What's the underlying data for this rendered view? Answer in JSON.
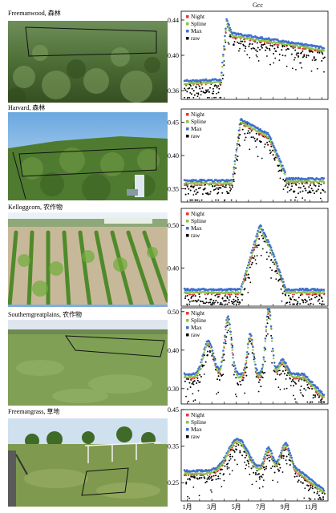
{
  "figure": {
    "ylabel": "Gcc",
    "months": [
      "1月",
      "3月",
      "5月",
      "7月",
      "9月",
      "11月"
    ],
    "legend": [
      "Night",
      "Spline",
      "Max",
      "raw"
    ],
    "colors": {
      "night": "#e53935",
      "spline": "#8bc34a",
      "max": "#3f6fd0",
      "raw": "#000000"
    }
  },
  "sites": [
    {
      "label": "Freemanwood, 森林",
      "ticks": [
        "0.44",
        "0.40",
        "0.36"
      ],
      "ylim": [
        0.35,
        0.45
      ]
    },
    {
      "label": "Harvard, 森林",
      "ticks": [
        "0.45",
        "0.40",
        "0.35"
      ],
      "ylim": [
        0.33,
        0.47
      ]
    },
    {
      "label": "Kelloggcorn, 农作物",
      "ticks": [
        "0.50",
        "0.40"
      ],
      "ylim": [
        0.31,
        0.54
      ]
    },
    {
      "label": "Southerngreatplains, 农作物",
      "ticks": [
        "0.50",
        "0.40",
        "0.30"
      ],
      "ylim": [
        0.26,
        0.51
      ]
    },
    {
      "label": "Freemangrass, 草地",
      "ticks": [
        "0.45",
        "0.35",
        "0.25"
      ],
      "ylim": [
        0.2,
        0.45
      ]
    }
  ]
}
